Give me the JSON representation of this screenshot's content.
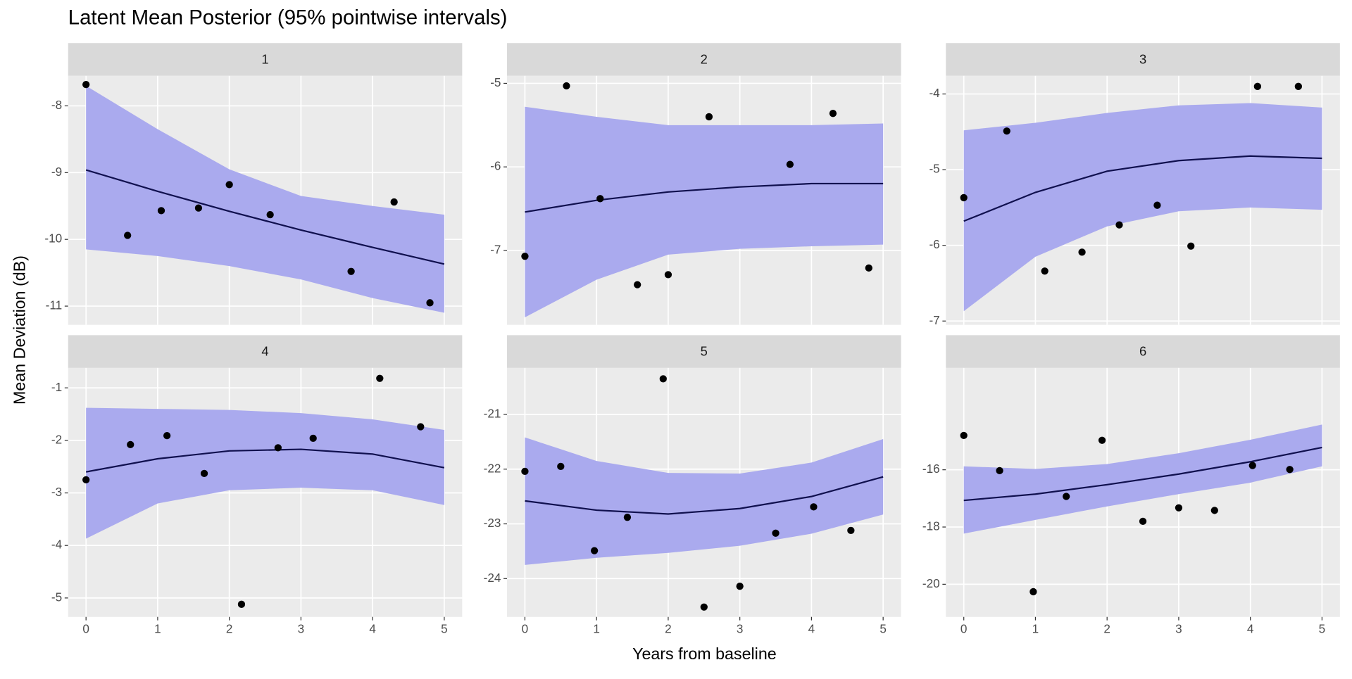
{
  "title": "Latent Mean Posterior (95% pointwise intervals)",
  "x_label": "Years from baseline",
  "y_label": "Mean Deviation (dB)",
  "chart_data": [
    {
      "type": "line",
      "title": "1",
      "xlim": [
        -0.25,
        5.25
      ],
      "xticks": [
        0,
        1,
        2,
        3,
        4,
        5
      ],
      "ylim": [
        -11.28,
        -7.55
      ],
      "yticks": [
        -8,
        -9,
        -10,
        -11
      ],
      "band_color": "#aaaaee",
      "line_color": "#10104e",
      "point_color": "#000000",
      "curve_x": [
        0,
        1,
        2,
        3,
        4,
        5
      ],
      "mean": [
        -8.96,
        -9.28,
        -9.58,
        -9.86,
        -10.12,
        -10.37
      ],
      "upper": [
        -7.7,
        -8.35,
        -8.95,
        -9.35,
        -9.5,
        -9.63
      ],
      "lower": [
        -10.15,
        -10.25,
        -10.4,
        -10.6,
        -10.88,
        -11.1
      ],
      "points_x": [
        0,
        0.58,
        1.05,
        1.57,
        2.0,
        2.57,
        3.7,
        4.3,
        4.8
      ],
      "points_y": [
        -7.68,
        -9.94,
        -9.57,
        -9.53,
        -9.18,
        -9.63,
        -10.48,
        -9.44,
        -10.95
      ]
    },
    {
      "type": "line",
      "title": "2",
      "xlim": [
        -0.25,
        5.25
      ],
      "xticks": [
        0,
        1,
        2,
        3,
        4,
        5
      ],
      "ylim": [
        -7.89,
        -4.91
      ],
      "yticks": [
        -5,
        -6,
        -7
      ],
      "band_color": "#aaaaee",
      "line_color": "#10104e",
      "point_color": "#000000",
      "curve_x": [
        0,
        1,
        2,
        3,
        4,
        5
      ],
      "mean": [
        -6.54,
        -6.4,
        -6.3,
        -6.24,
        -6.2,
        -6.2
      ],
      "upper": [
        -5.28,
        -5.4,
        -5.5,
        -5.5,
        -5.5,
        -5.48
      ],
      "lower": [
        -7.8,
        -7.35,
        -7.05,
        -6.98,
        -6.95,
        -6.93
      ],
      "points_x": [
        0,
        0.58,
        1.05,
        1.57,
        2.0,
        2.57,
        3.7,
        4.3,
        4.8
      ],
      "points_y": [
        -7.07,
        -5.03,
        -6.38,
        -7.41,
        -7.29,
        -5.4,
        -5.97,
        -5.36,
        -7.21
      ]
    },
    {
      "type": "line",
      "title": "3",
      "xlim": [
        -0.25,
        5.25
      ],
      "xticks": [
        0,
        1,
        2,
        3,
        4,
        5
      ],
      "ylim": [
        -7.05,
        -3.76
      ],
      "yticks": [
        -4,
        -5,
        -6,
        -7
      ],
      "band_color": "#aaaaee",
      "line_color": "#10104e",
      "point_color": "#000000",
      "curve_x": [
        0,
        1,
        2,
        3,
        4,
        5
      ],
      "mean": [
        -5.68,
        -5.3,
        -5.02,
        -4.88,
        -4.82,
        -4.85
      ],
      "upper": [
        -4.48,
        -4.38,
        -4.25,
        -4.15,
        -4.12,
        -4.18
      ],
      "lower": [
        -6.87,
        -6.15,
        -5.75,
        -5.55,
        -5.5,
        -5.53
      ],
      "points_x": [
        0,
        0.6,
        1.13,
        1.65,
        2.17,
        2.7,
        3.17,
        4.1,
        4.67
      ],
      "points_y": [
        -5.37,
        -4.49,
        -6.34,
        -6.09,
        -5.73,
        -5.47,
        -6.01,
        -3.9,
        -3.9
      ]
    },
    {
      "type": "line",
      "title": "4",
      "xlim": [
        -0.25,
        5.25
      ],
      "xticks": [
        0,
        1,
        2,
        3,
        4,
        5
      ],
      "ylim": [
        -5.36,
        -0.62
      ],
      "yticks": [
        -1,
        -2,
        -3,
        -4,
        -5
      ],
      "band_color": "#aaaaee",
      "line_color": "#10104e",
      "point_color": "#000000",
      "curve_x": [
        0,
        1,
        2,
        3,
        4,
        5
      ],
      "mean": [
        -2.6,
        -2.35,
        -2.2,
        -2.17,
        -2.26,
        -2.52
      ],
      "upper": [
        -1.38,
        -1.4,
        -1.42,
        -1.48,
        -1.6,
        -1.8
      ],
      "lower": [
        -3.87,
        -3.2,
        -2.95,
        -2.9,
        -2.95,
        -3.23
      ],
      "points_x": [
        0,
        0.62,
        1.13,
        1.65,
        2.17,
        2.68,
        3.17,
        4.1,
        4.67
      ],
      "points_y": [
        -2.75,
        -2.08,
        -1.91,
        -2.63,
        -5.12,
        -2.14,
        -1.96,
        -0.82,
        -1.74
      ]
    },
    {
      "type": "line",
      "title": "5",
      "xlim": [
        -0.25,
        5.25
      ],
      "xticks": [
        0,
        1,
        2,
        3,
        4,
        5
      ],
      "ylim": [
        -24.7,
        -20.15
      ],
      "yticks": [
        -21,
        -22,
        -23,
        -24
      ],
      "band_color": "#aaaaee",
      "line_color": "#10104e",
      "point_color": "#000000",
      "curve_x": [
        0,
        1,
        2,
        3,
        4,
        5
      ],
      "mean": [
        -22.58,
        -22.75,
        -22.82,
        -22.72,
        -22.5,
        -22.14
      ],
      "upper": [
        -21.42,
        -21.85,
        -22.07,
        -22.08,
        -21.88,
        -21.45
      ],
      "lower": [
        -23.75,
        -23.62,
        -23.53,
        -23.4,
        -23.18,
        -22.83
      ],
      "points_x": [
        0,
        0.5,
        0.97,
        1.43,
        1.93,
        2.5,
        3.0,
        3.5,
        4.03,
        4.55
      ],
      "points_y": [
        -22.04,
        -21.95,
        -23.49,
        -22.88,
        -20.35,
        -24.52,
        -24.14,
        -23.17,
        -22.69,
        -23.12
      ]
    },
    {
      "type": "line",
      "title": "6",
      "xlim": [
        -0.25,
        5.25
      ],
      "xticks": [
        0,
        1,
        2,
        3,
        4,
        5
      ],
      "ylim": [
        -21.14,
        -12.44
      ],
      "yticks": [
        -16,
        -18,
        -20
      ],
      "band_color": "#aaaaee",
      "line_color": "#10104e",
      "point_color": "#000000",
      "curve_x": [
        0,
        1,
        2,
        3,
        4,
        5
      ],
      "mean": [
        -17.07,
        -16.85,
        -16.52,
        -16.15,
        -15.72,
        -15.22
      ],
      "upper": [
        -15.88,
        -15.97,
        -15.8,
        -15.42,
        -14.95,
        -14.42
      ],
      "lower": [
        -18.23,
        -17.75,
        -17.28,
        -16.85,
        -16.45,
        -15.88
      ],
      "points_x": [
        0,
        0.5,
        0.97,
        1.43,
        1.93,
        2.5,
        3.0,
        3.5,
        4.03,
        4.55
      ],
      "points_y": [
        -14.8,
        -16.03,
        -20.26,
        -16.93,
        -14.97,
        -17.8,
        -17.33,
        -17.42,
        -15.85,
        -15.99
      ]
    }
  ]
}
